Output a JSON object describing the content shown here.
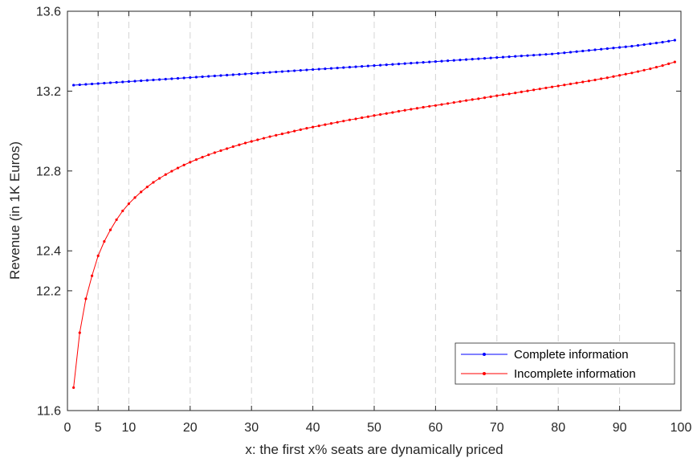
{
  "chart_data": {
    "type": "line",
    "title": "",
    "xlabel": "x: the first x% seats are dynamically priced",
    "ylabel": "Revenue (in 1K Euros)",
    "xlim": [
      0,
      100
    ],
    "ylim": [
      11.6,
      13.6
    ],
    "xticks": [
      0,
      5,
      10,
      20,
      30,
      40,
      50,
      60,
      70,
      80,
      90,
      100
    ],
    "xtick_labels": [
      "0",
      "5",
      "10",
      "20",
      "30",
      "40",
      "50",
      "60",
      "70",
      "80",
      "90",
      "100"
    ],
    "yticks": [
      11.6,
      12.2,
      12.4,
      12.8,
      13.2,
      13.6
    ],
    "ytick_labels": [
      "11.6",
      "12.2",
      "12.4",
      "12.8",
      "13.2",
      "13.6"
    ],
    "grid": "vertical dashed",
    "legend_position": "bottom-right",
    "x": [
      1,
      2,
      3,
      4,
      5,
      6,
      7,
      8,
      9,
      10,
      11,
      12,
      13,
      14,
      15,
      16,
      17,
      18,
      19,
      20,
      21,
      22,
      23,
      24,
      25,
      26,
      27,
      28,
      29,
      30,
      31,
      32,
      33,
      34,
      35,
      36,
      37,
      38,
      39,
      40,
      41,
      42,
      43,
      44,
      45,
      46,
      47,
      48,
      49,
      50,
      51,
      52,
      53,
      54,
      55,
      56,
      57,
      58,
      59,
      60,
      61,
      62,
      63,
      64,
      65,
      66,
      67,
      68,
      69,
      70,
      71,
      72,
      73,
      74,
      75,
      76,
      77,
      78,
      79,
      80,
      81,
      82,
      83,
      84,
      85,
      86,
      87,
      88,
      89,
      90,
      91,
      92,
      93,
      94,
      95,
      96,
      97,
      98,
      99
    ],
    "series": [
      {
        "name": "Complete information",
        "color": "#0000ff",
        "values": [
          13.23,
          13.232,
          13.234,
          13.236,
          13.238,
          13.24,
          13.242,
          13.244,
          13.246,
          13.248,
          13.25,
          13.252,
          13.254,
          13.256,
          13.258,
          13.26,
          13.262,
          13.264,
          13.266,
          13.268,
          13.27,
          13.272,
          13.274,
          13.276,
          13.278,
          13.28,
          13.282,
          13.284,
          13.286,
          13.288,
          13.29,
          13.292,
          13.294,
          13.296,
          13.298,
          13.3,
          13.302,
          13.304,
          13.306,
          13.308,
          13.31,
          13.312,
          13.314,
          13.316,
          13.318,
          13.32,
          13.322,
          13.324,
          13.326,
          13.328,
          13.33,
          13.332,
          13.334,
          13.336,
          13.338,
          13.34,
          13.342,
          13.344,
          13.346,
          13.348,
          13.35,
          13.352,
          13.354,
          13.356,
          13.358,
          13.36,
          13.362,
          13.364,
          13.366,
          13.368,
          13.37,
          13.372,
          13.374,
          13.376,
          13.378,
          13.38,
          13.382,
          13.384,
          13.386,
          13.389,
          13.392,
          13.395,
          13.398,
          13.401,
          13.404,
          13.407,
          13.41,
          13.413,
          13.416,
          13.419,
          13.422,
          13.425,
          13.429,
          13.433,
          13.437,
          13.441,
          13.445,
          13.45,
          13.455
        ]
      },
      {
        "name": "Incomplete information",
        "color": "#ff0000",
        "values": [
          11.715,
          11.99,
          12.16,
          12.275,
          12.375,
          12.447,
          12.505,
          12.556,
          12.6,
          12.636,
          12.667,
          12.695,
          12.72,
          12.743,
          12.763,
          12.782,
          12.799,
          12.815,
          12.83,
          12.844,
          12.857,
          12.869,
          12.881,
          12.892,
          12.902,
          12.912,
          12.922,
          12.931,
          12.94,
          12.948,
          12.956,
          12.964,
          12.972,
          12.979,
          12.986,
          12.993,
          13.0,
          13.007,
          13.014,
          13.02,
          13.026,
          13.032,
          13.038,
          13.044,
          13.05,
          13.056,
          13.061,
          13.067,
          13.072,
          13.078,
          13.083,
          13.088,
          13.093,
          13.099,
          13.104,
          13.109,
          13.114,
          13.119,
          13.124,
          13.128,
          13.133,
          13.138,
          13.143,
          13.148,
          13.153,
          13.158,
          13.162,
          13.167,
          13.172,
          13.177,
          13.182,
          13.186,
          13.191,
          13.196,
          13.201,
          13.206,
          13.211,
          13.216,
          13.221,
          13.226,
          13.231,
          13.236,
          13.241,
          13.246,
          13.251,
          13.256,
          13.262,
          13.267,
          13.273,
          13.279,
          13.285,
          13.291,
          13.298,
          13.305,
          13.312,
          13.32,
          13.328,
          13.337,
          13.346
        ]
      }
    ]
  }
}
